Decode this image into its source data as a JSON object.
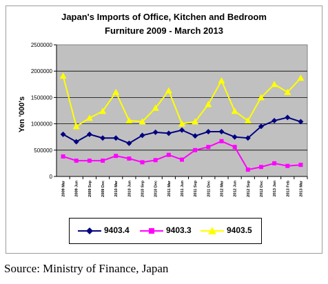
{
  "chart_data": {
    "type": "line",
    "title_lines": [
      "Japan's Imports of Office, Kitchen and Bedroom",
      "Furniture 2009 - March 2013"
    ],
    "xlabel": "",
    "ylabel": "Yen '000's",
    "ylim": [
      0,
      2500000
    ],
    "yticks": [
      "0",
      "500000",
      "1000000",
      "1500000",
      "2000000",
      "2500000"
    ],
    "grid": true,
    "plot_background": "#c0c0c0",
    "legend_position": "bottom",
    "categories": [
      "2009 Mar",
      "2009 Jun",
      "2009 Sep",
      "2009 Dec",
      "2010 Mar",
      "2010 Jun",
      "2010 Sep",
      "2010 Dec",
      "2011 Mar",
      "2011 Jun",
      "2011 Sep",
      "2011 Dec",
      "2012 Mar",
      "2012 Jun",
      "2012 Sep",
      "2012 Dec",
      "2013 Jan",
      "2013 Feb",
      "2013 Mar"
    ],
    "series": [
      {
        "name": "9403.4",
        "color": "#000080",
        "marker": "diamond",
        "values": [
          800000,
          660000,
          800000,
          730000,
          730000,
          630000,
          780000,
          840000,
          820000,
          880000,
          770000,
          850000,
          850000,
          750000,
          730000,
          950000,
          1060000,
          1120000,
          1040000
        ]
      },
      {
        "name": "9403.3",
        "color": "#ff00ff",
        "marker": "square",
        "values": [
          380000,
          300000,
          300000,
          300000,
          390000,
          340000,
          270000,
          310000,
          410000,
          320000,
          500000,
          560000,
          670000,
          560000,
          130000,
          180000,
          250000,
          200000,
          220000
        ]
      },
      {
        "name": "9403.5",
        "color": "#ffff00",
        "marker": "triangle",
        "values": [
          1910000,
          950000,
          1110000,
          1240000,
          1600000,
          1060000,
          1040000,
          1300000,
          1630000,
          1000000,
          1040000,
          1370000,
          1820000,
          1240000,
          1060000,
          1500000,
          1750000,
          1600000,
          1870000
        ]
      }
    ]
  },
  "source_text": "Source: Ministry of Finance, Japan"
}
